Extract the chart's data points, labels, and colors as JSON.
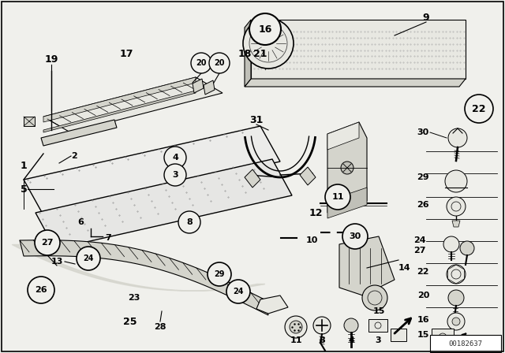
{
  "bg_color": "#f0f0ec",
  "watermark": "00182637",
  "line_color": "#111111",
  "fill_light": "#e8e8e2",
  "fill_mid": "#d4d4cc",
  "fill_dark": "#c0c0b8"
}
